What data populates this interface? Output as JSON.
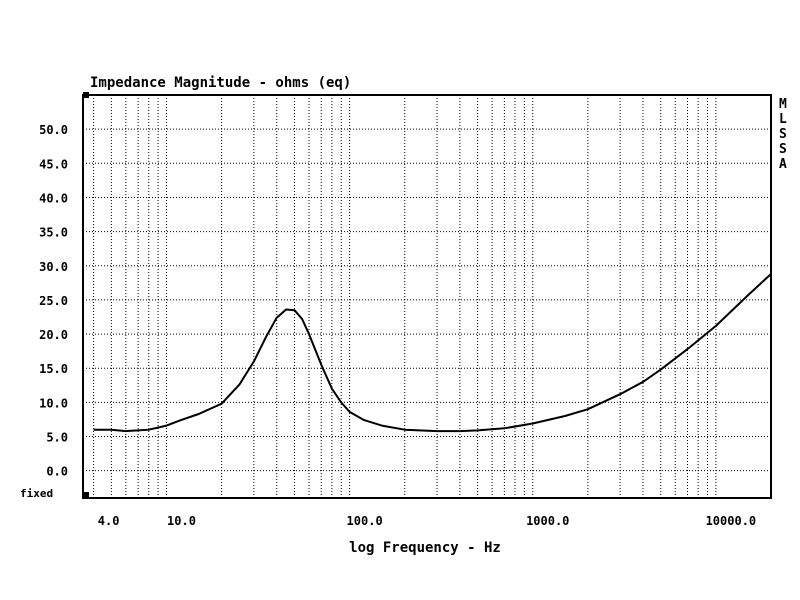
{
  "chart_data": {
    "type": "line",
    "title": "Impedance Magnitude - ohms (eq)",
    "xlabel": "log Frequency - Hz",
    "ylabel": "",
    "x_scale": "log",
    "xlim": [
      3.5,
      20000
    ],
    "ylim": [
      -4,
      55
    ],
    "y_ticks": [
      0.0,
      5.0,
      10.0,
      15.0,
      20.0,
      25.0,
      30.0,
      35.0,
      40.0,
      45.0,
      50.0
    ],
    "y_tick_labels": [
      "0.0",
      "5.0",
      "10.0",
      "15.0",
      "20.0",
      "25.0",
      "30.0",
      "35.0",
      "40.0",
      "45.0",
      "50.0"
    ],
    "x_ticks": [
      4,
      10,
      100,
      1000,
      10000
    ],
    "x_tick_labels": [
      "4.0",
      "10.0",
      "100.0",
      "1000.0",
      "10000.0"
    ],
    "bottom_left_label": "fixed",
    "side_legend": [
      "M",
      "L",
      "S",
      "S",
      "A"
    ],
    "grid": true,
    "series": [
      {
        "x": [
          4,
          5,
          6,
          8,
          10,
          12,
          15,
          20,
          25,
          30,
          35,
          40,
          45,
          50,
          55,
          60,
          70,
          80,
          90,
          100,
          120,
          150,
          200,
          300,
          400,
          500,
          700,
          1000,
          1500,
          2000,
          3000,
          4000,
          5000,
          7000,
          10000,
          15000,
          20000
        ],
        "y": [
          6.0,
          6.0,
          5.8,
          6.0,
          6.6,
          7.4,
          8.3,
          9.8,
          12.6,
          16.0,
          19.6,
          22.4,
          23.6,
          23.5,
          22.2,
          20.0,
          15.5,
          12.0,
          10.0,
          8.6,
          7.4,
          6.6,
          6.0,
          5.8,
          5.8,
          5.9,
          6.2,
          6.9,
          8.0,
          9.0,
          11.2,
          13.0,
          14.8,
          17.8,
          21.2,
          25.7,
          28.8
        ]
      }
    ]
  }
}
